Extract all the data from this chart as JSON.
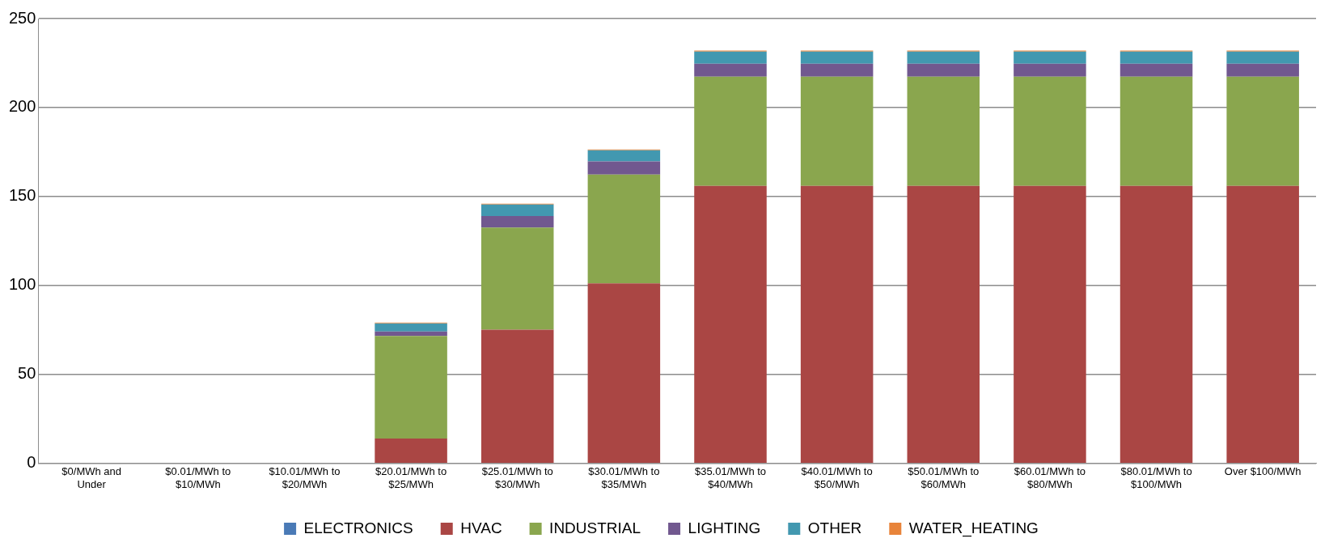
{
  "chart_data": {
    "type": "bar",
    "stacked": true,
    "categories": [
      "$0/MWh and Under",
      "$0.01/MWh to $10/MWh",
      "$10.01/MWh to $20/MWh",
      "$20.01/MWh to $25/MWh",
      "$25.01/MWh to $30/MWh",
      "$30.01/MWh to $35/MWh",
      "$35.01/MWh to $40/MWh",
      "$40.01/MWh to $50/MWh",
      "$50.01/MWh to $60/MWh",
      "$60.01/MWh to $80/MWh",
      "$80.01/MWh to $100/MWh",
      "Over $100/MWh"
    ],
    "series": [
      {
        "name": "ELECTRONICS",
        "color": "#4a7ab6",
        "values": [
          0,
          0,
          0,
          0,
          0,
          0,
          0,
          0,
          0,
          0,
          0,
          0
        ]
      },
      {
        "name": "HVAC",
        "color": "#aa4644",
        "values": [
          0,
          0,
          0,
          14,
          75.2,
          101.2,
          156,
          156,
          156,
          156,
          156,
          156
        ]
      },
      {
        "name": "INDUSTRIAL",
        "color": "#8aa64e",
        "values": [
          0,
          0,
          0,
          57.6,
          57.4,
          61.2,
          61.4,
          61.4,
          61.4,
          61.4,
          61.4,
          61.4
        ]
      },
      {
        "name": "LIGHTING",
        "color": "#71588f",
        "values": [
          0,
          0,
          0,
          2.5,
          6.4,
          7.3,
          7.2,
          7.2,
          7.2,
          7.2,
          7.2,
          7.2
        ]
      },
      {
        "name": "OTHER",
        "color": "#4298b0",
        "values": [
          0,
          0,
          0,
          4.6,
          6.5,
          6.3,
          6.9,
          6.9,
          6.9,
          6.9,
          6.9,
          6.9
        ]
      },
      {
        "name": "WATER_HEATING",
        "color": "#e8843a",
        "values": [
          0,
          0,
          0,
          0.4,
          0.5,
          0.5,
          0.5,
          0.5,
          0.5,
          0.5,
          0.5,
          0.5
        ]
      }
    ],
    "ylim": [
      0,
      250
    ],
    "yticks": [
      0,
      50,
      100,
      150,
      200,
      250
    ],
    "grid": "y",
    "legend": "bottom"
  }
}
